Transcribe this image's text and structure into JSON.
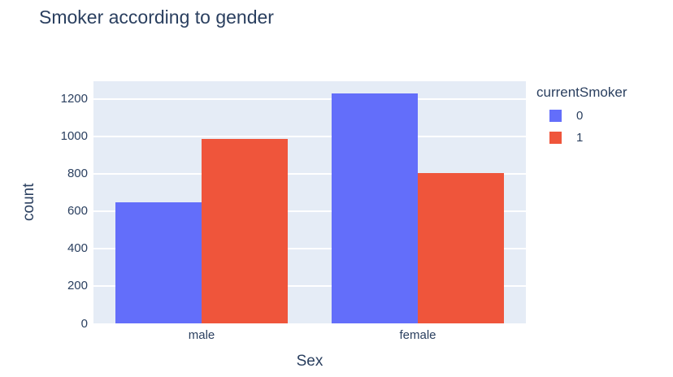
{
  "chart_data": {
    "type": "bar",
    "mode": "grouped",
    "title": "Smoker according to gender",
    "xlabel": "Sex",
    "ylabel": "count",
    "categories": [
      "male",
      "female"
    ],
    "series": [
      {
        "name": "0",
        "color": "#636efa",
        "values": [
          645,
          1230
        ]
      },
      {
        "name": "1",
        "color": "#ef553b",
        "values": [
          985,
          805
        ]
      }
    ],
    "ylim": [
      0,
      1294
    ],
    "yticks": [
      0,
      200,
      400,
      600,
      800,
      1000,
      1200
    ],
    "grid": true,
    "legend": {
      "title": "currentSmoker",
      "position": "right"
    },
    "colors": {
      "plot_background": "#e5ecf6",
      "gridline": "#ffffff",
      "text": "#2a3f5f",
      "page_background": "#ffffff"
    }
  }
}
